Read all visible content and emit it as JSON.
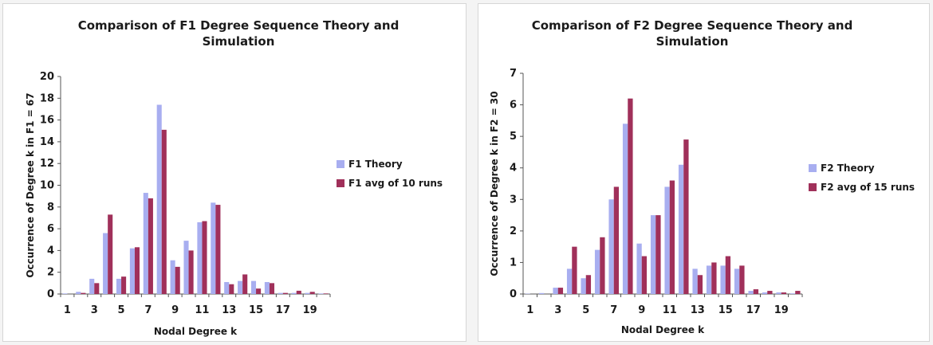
{
  "chart_data": [
    {
      "type": "bar",
      "title": "Comparison of F1 Degree Sequence Theory and Simulation",
      "title_lines": [
        "Comparison of F1 Degree Sequence Theory and",
        "Simulation"
      ],
      "xlabel": "Nodal Degree k",
      "ylabel": "Occurrence of Degree k in F1 = 67",
      "ylim": [
        0,
        20
      ],
      "y_ticks": [
        "0",
        "2",
        "4",
        "6",
        "8",
        "10",
        "12",
        "14",
        "16",
        "18",
        "20"
      ],
      "categories": [
        1,
        2,
        3,
        4,
        5,
        6,
        7,
        8,
        9,
        10,
        11,
        12,
        13,
        14,
        15,
        16,
        17,
        18,
        19,
        20
      ],
      "x_tick_labels": [
        "1",
        "3",
        "5",
        "7",
        "9",
        "11",
        "13",
        "15",
        "17",
        "19"
      ],
      "grid": false,
      "legend_position": "right",
      "series": [
        {
          "name": "F1 Theory",
          "color": "#a8aef0",
          "values": [
            0.05,
            0.2,
            1.4,
            5.6,
            1.4,
            4.2,
            9.3,
            17.4,
            3.1,
            4.9,
            6.6,
            8.4,
            1.1,
            1.2,
            1.2,
            1.1,
            0.1,
            0.1,
            0.1,
            0.05
          ]
        },
        {
          "name": "F1 avg of 10 runs",
          "color": "#a0305a",
          "values": [
            0.0,
            0.1,
            1.0,
            7.3,
            1.6,
            4.3,
            8.8,
            15.1,
            2.5,
            4.0,
            6.7,
            8.2,
            0.9,
            1.8,
            0.5,
            1.0,
            0.1,
            0.3,
            0.2,
            0.05
          ]
        }
      ]
    },
    {
      "type": "bar",
      "title": "Comparison of F2 Degree Sequence Theory and Simulation",
      "title_lines": [
        "Comparison of F2 Degree Sequence Theory and",
        "Simulation"
      ],
      "xlabel": "Nodal Degree k",
      "ylabel": "Occurrence of Degree k in F2 = 30",
      "ylim": [
        0,
        7
      ],
      "y_ticks": [
        "0",
        "1",
        "2",
        "3",
        "4",
        "5",
        "6",
        "7"
      ],
      "categories": [
        1,
        2,
        3,
        4,
        5,
        6,
        7,
        8,
        9,
        10,
        11,
        12,
        13,
        14,
        15,
        16,
        17,
        18,
        19,
        20
      ],
      "x_tick_labels": [
        "1",
        "3",
        "5",
        "7",
        "9",
        "11",
        "13",
        "15",
        "17",
        "19"
      ],
      "grid": false,
      "legend_position": "right",
      "series": [
        {
          "name": "F2 Theory",
          "color": "#a8aef0",
          "values": [
            0.01,
            0.03,
            0.2,
            0.8,
            0.5,
            1.4,
            3.0,
            5.4,
            1.6,
            2.5,
            3.4,
            4.1,
            0.8,
            0.9,
            0.9,
            0.8,
            0.1,
            0.05,
            0.05,
            0.02
          ]
        },
        {
          "name": "F2 avg of 15 runs",
          "color": "#a0305a",
          "values": [
            0.0,
            0.0,
            0.2,
            1.5,
            0.6,
            1.8,
            3.4,
            6.2,
            1.2,
            2.5,
            3.6,
            4.9,
            0.6,
            1.0,
            1.2,
            0.9,
            0.15,
            0.1,
            0.05,
            0.1
          ]
        }
      ]
    }
  ]
}
